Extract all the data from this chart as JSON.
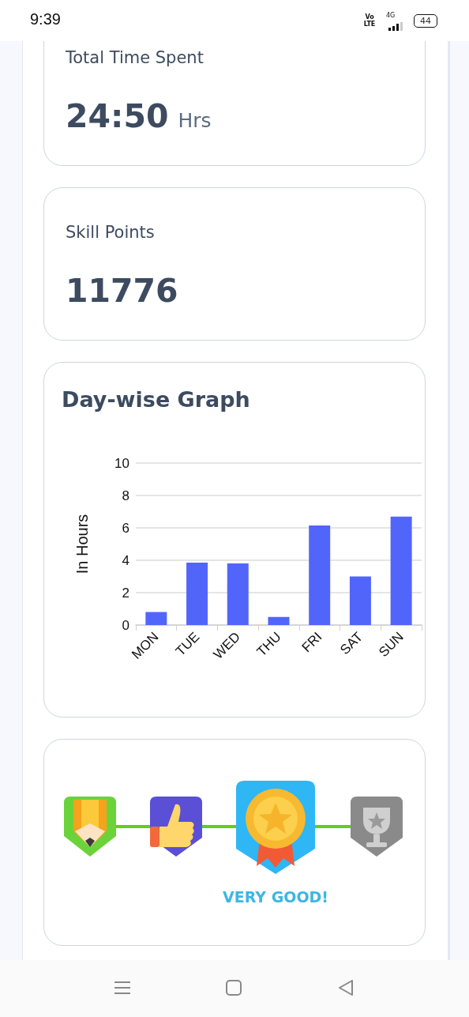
{
  "chart_data": [
    {
      "type": "other",
      "annotations": [
        "9:39",
        "Vo LTE",
        "4G",
        "44"
      ]
    },
    {
      "type": "other",
      "title": "Total Time Spent",
      "annotations": [
        "24:50",
        "Hrs"
      ]
    },
    {
      "type": "other",
      "title": "Skill Points",
      "annotations": [
        "11776"
      ]
    },
    {
      "type": "bar",
      "title": "Day-wise Graph",
      "ylabel": "In Hours",
      "categories": [
        "MON",
        "TUE",
        "WED",
        "THU",
        "FRI",
        "SAT",
        "SUN"
      ],
      "values": [
        0.8,
        3.85,
        3.8,
        0.5,
        6.15,
        3.0,
        6.7
      ],
      "color": "#5265fb",
      "ylim": [
        0,
        10
      ],
      "yticks": [
        0,
        2,
        4,
        6,
        8,
        10
      ],
      "grid": "y"
    },
    {
      "type": "other",
      "annotations": [
        "VERY GOOD!"
      ]
    }
  ]
}
